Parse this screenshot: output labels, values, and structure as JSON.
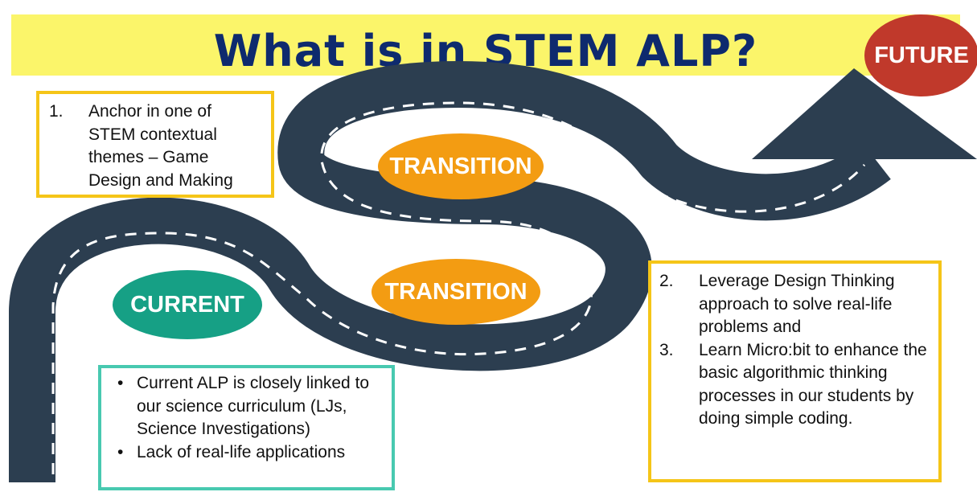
{
  "header": {
    "title": "What is in STEM ALP?"
  },
  "stages": {
    "future": "FUTURE",
    "transition_upper": "TRANSITION",
    "transition_lower": "TRANSITION",
    "current": "CURRENT"
  },
  "future_box": {
    "items": [
      {
        "num": "1.",
        "text": "Anchor in one of STEM contextual themes – Game Design and Making"
      }
    ]
  },
  "transition_box": {
    "items": [
      {
        "num": "2.",
        "text": "Leverage Design Thinking approach to solve real-life problems and"
      },
      {
        "num": "3.",
        "text": "Learn Micro:bit to enhance the basic algorithmic thinking processes in our students by doing simple coding."
      }
    ]
  },
  "current_box": {
    "bullets": [
      {
        "mark": "•",
        "text": "Current ALP is closely linked to our science curriculum (LJs, Science Investigations)"
      },
      {
        "mark": "•",
        "text": "Lack of real-life applications"
      }
    ]
  },
  "colors": {
    "title_bar": "#fbf56a",
    "title_text": "#0e2a6e",
    "road": "#2c3e50",
    "future": "#c0392b",
    "transition": "#f39c12",
    "current": "#16a085",
    "box_border_yellow": "#f5c518",
    "box_border_teal": "#48c9b0"
  }
}
